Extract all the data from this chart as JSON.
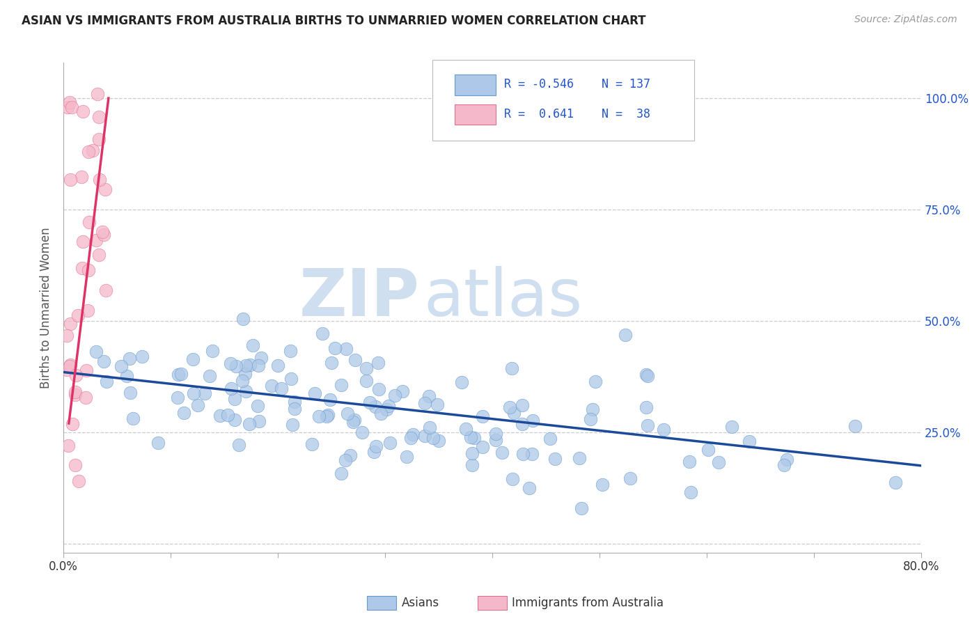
{
  "title": "ASIAN VS IMMIGRANTS FROM AUSTRALIA BIRTHS TO UNMARRIED WOMEN CORRELATION CHART",
  "source": "Source: ZipAtlas.com",
  "ylabel": "Births to Unmarried Women",
  "xmin": 0.0,
  "xmax": 0.8,
  "ymin": -0.02,
  "ymax": 1.08,
  "blue_R": -0.546,
  "blue_N": 137,
  "pink_R": 0.641,
  "pink_N": 38,
  "blue_label": "Asians",
  "pink_label": "Immigrants from Australia",
  "blue_color": "#adc8e8",
  "blue_edge": "#6699cc",
  "pink_color": "#f5b8ca",
  "pink_edge": "#e07090",
  "blue_line_color": "#1a4a99",
  "pink_line_color": "#dd3366",
  "watermark_zip": "ZIP",
  "watermark_atlas": "atlas",
  "watermark_color": "#d0dff0",
  "grid_color": "#cccccc",
  "title_color": "#222222",
  "axis_label_color": "#555555",
  "legend_text_color": "#2255cc",
  "ytick_vals": [
    0.0,
    0.25,
    0.5,
    0.75,
    1.0
  ],
  "ytick_labels": [
    "",
    "25.0%",
    "50.0%",
    "75.0%",
    "100.0%"
  ],
  "blue_trendline_x": [
    0.0,
    0.8
  ],
  "blue_trendline_y": [
    0.385,
    0.175
  ],
  "pink_trendline_x": [
    0.005,
    0.042
  ],
  "pink_trendline_y": [
    0.27,
    1.0
  ]
}
